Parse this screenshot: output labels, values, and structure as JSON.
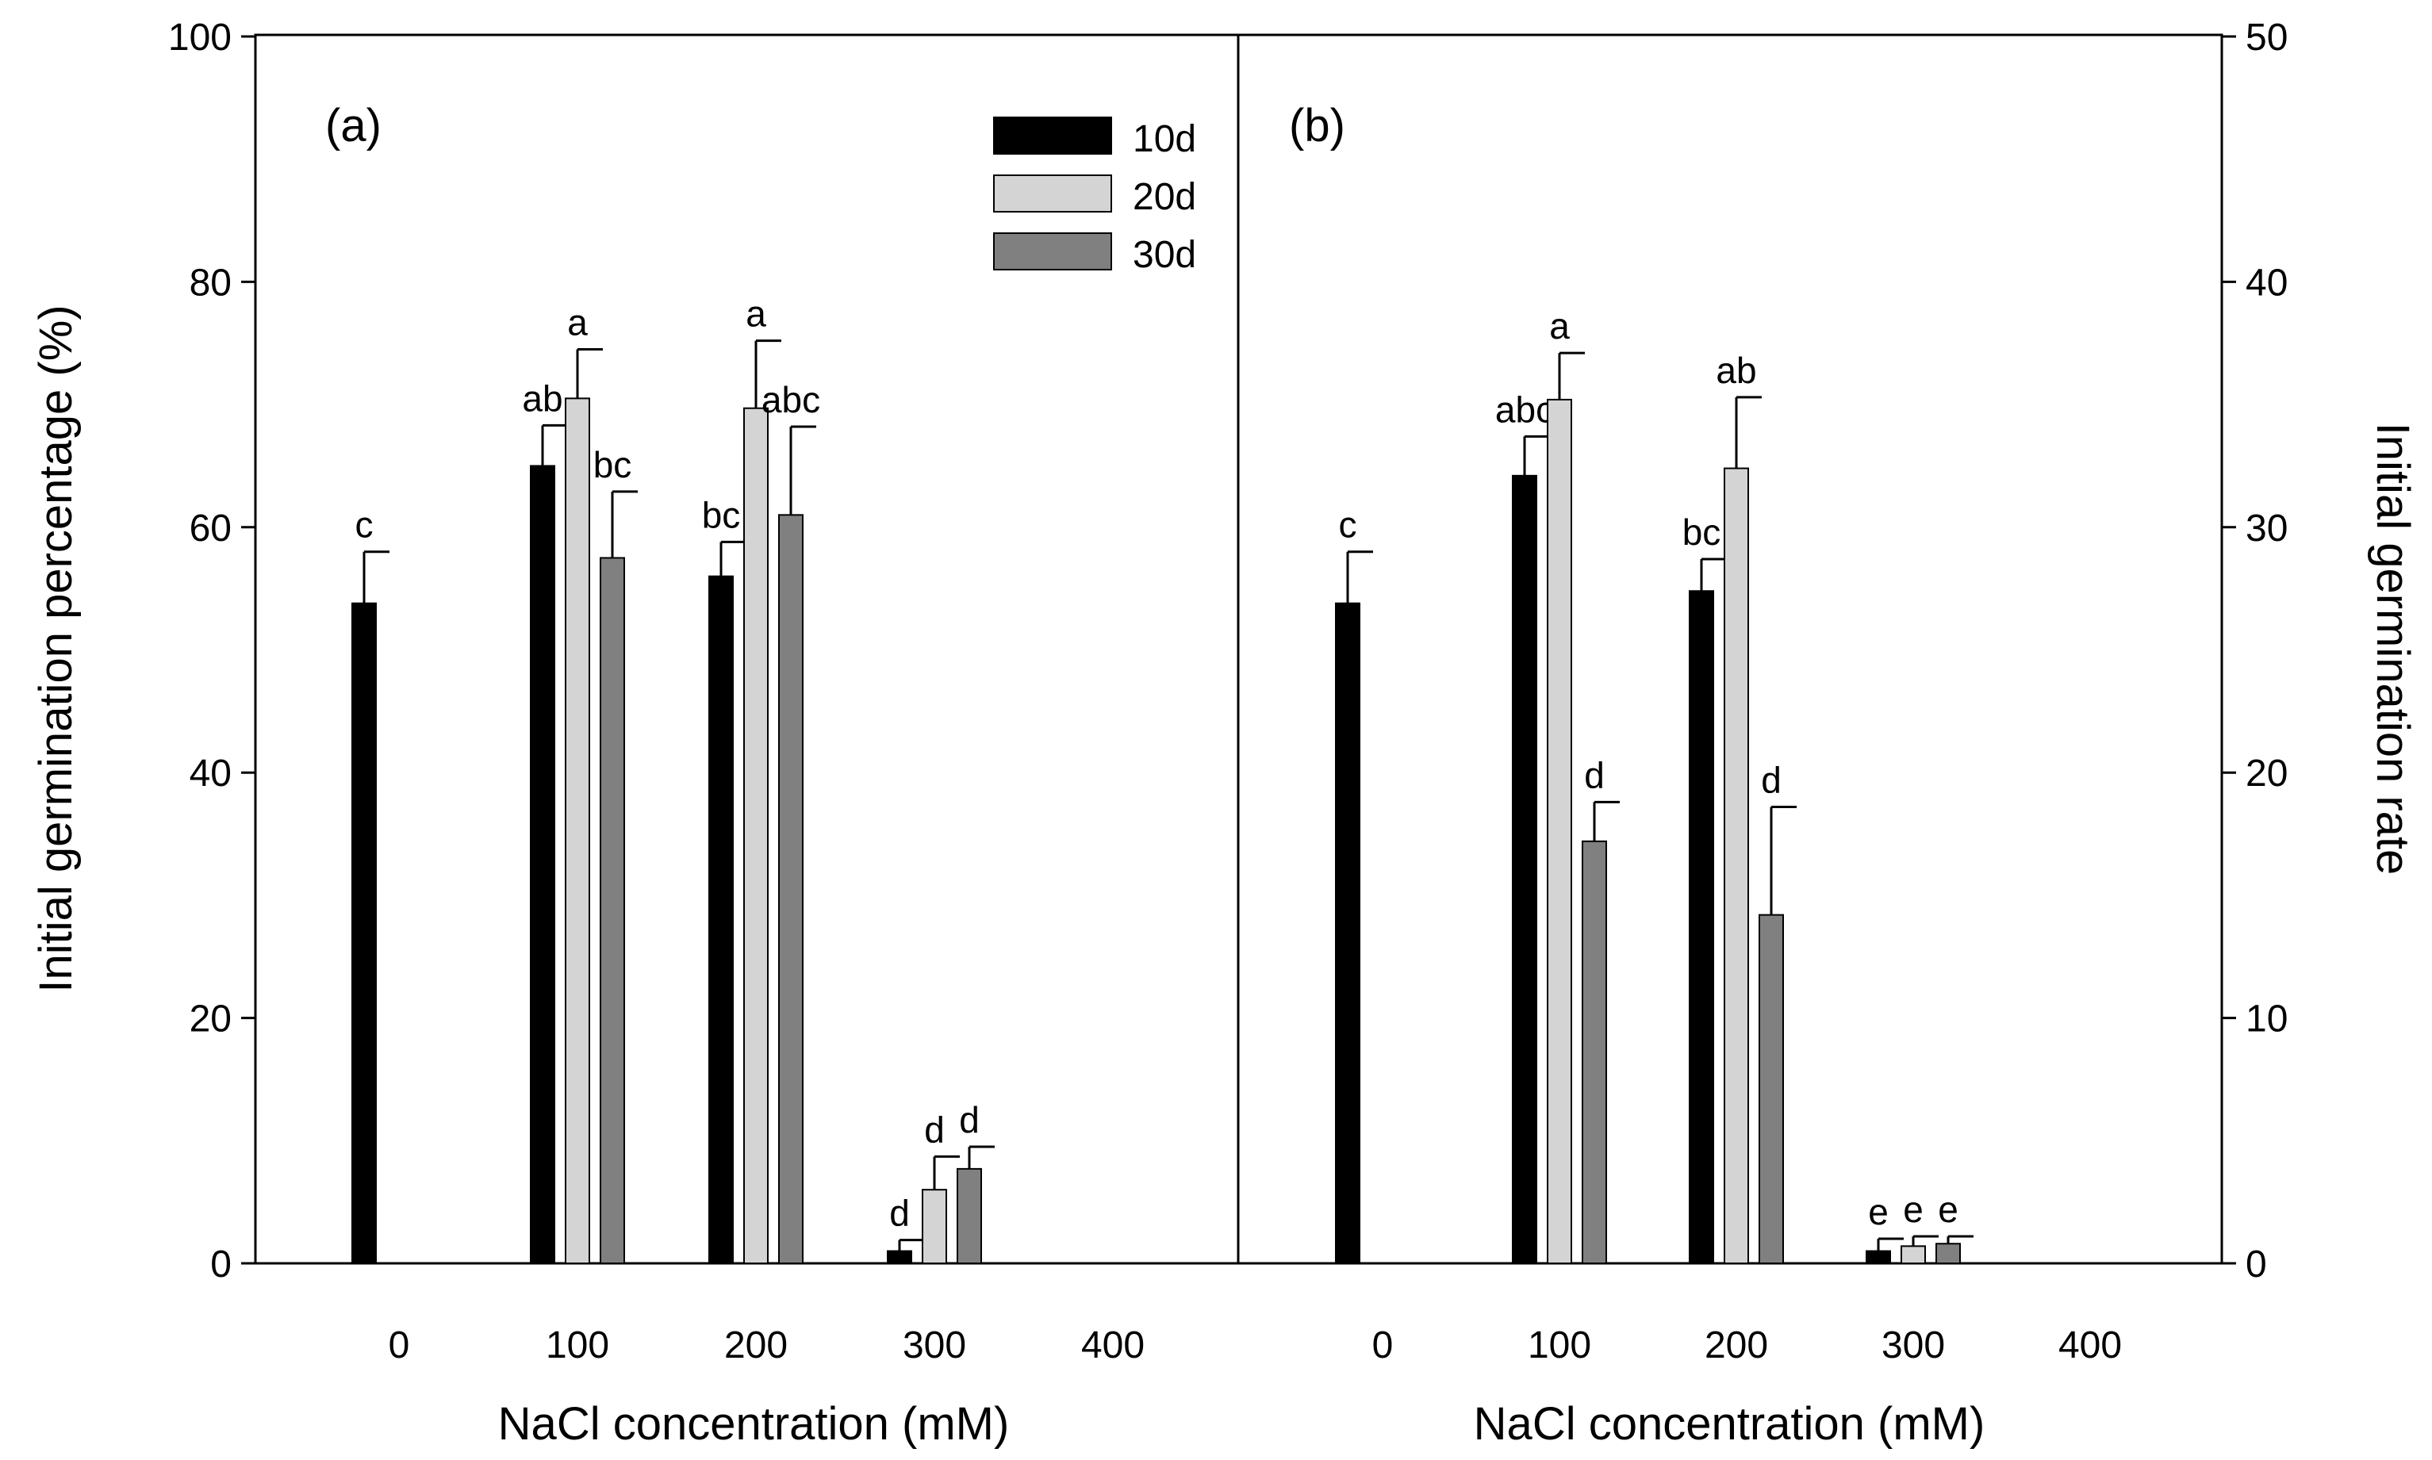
{
  "figure": {
    "left_axis_title": "Initial germination percentage (%)",
    "right_axis_title": "Initial germination rate",
    "legend": [
      {
        "label": "10d",
        "color": "#000000"
      },
      {
        "label": "20d",
        "color": "#d4d4d4"
      },
      {
        "label": "30d",
        "color": "#808080"
      }
    ]
  },
  "chart_data": [
    {
      "type": "bar",
      "panel_label": "(a)",
      "xlabel": "NaCl concentration (mM)",
      "ylabel": "Initial germination percentage (%)",
      "categories": [
        "0",
        "100",
        "200",
        "300",
        "400"
      ],
      "ylim": [
        0,
        100
      ],
      "yticks": [
        0,
        20,
        40,
        60,
        80,
        100
      ],
      "series": [
        {
          "name": "10d",
          "color": "#000000",
          "values": [
            53.8,
            65.0,
            56.0,
            1.0,
            null
          ],
          "errors": [
            4.2,
            3.3,
            2.8,
            0.9,
            null
          ],
          "labels": [
            "c",
            "ab",
            "bc",
            "d",
            null
          ]
        },
        {
          "name": "20d",
          "color": "#d4d4d4",
          "values": [
            null,
            70.5,
            69.7,
            6.0,
            null
          ],
          "errors": [
            null,
            4.0,
            5.5,
            2.7,
            null
          ],
          "labels": [
            null,
            "a",
            "a",
            "d",
            null
          ]
        },
        {
          "name": "30d",
          "color": "#808080",
          "values": [
            null,
            57.5,
            61.0,
            7.7,
            null
          ],
          "errors": [
            null,
            5.4,
            7.2,
            1.8,
            null
          ],
          "labels": [
            null,
            "bc",
            "abc",
            "d",
            null
          ]
        }
      ]
    },
    {
      "type": "bar",
      "panel_label": "(b)",
      "xlabel": "NaCl concentration (mM)",
      "ylabel": "Initial germination rate",
      "categories": [
        "0",
        "100",
        "200",
        "300",
        "400"
      ],
      "ylim": [
        0,
        50
      ],
      "yticks": [
        0,
        10,
        20,
        30,
        40,
        50
      ],
      "series": [
        {
          "name": "10d",
          "color": "#000000",
          "values": [
            26.9,
            32.1,
            27.4,
            0.5,
            null
          ],
          "errors": [
            2.1,
            1.6,
            1.3,
            0.5,
            null
          ],
          "labels": [
            "c",
            "abc",
            "bc",
            "e",
            null
          ]
        },
        {
          "name": "20d",
          "color": "#d4d4d4",
          "values": [
            null,
            35.2,
            32.4,
            0.7,
            null
          ],
          "errors": [
            null,
            1.9,
            2.9,
            0.4,
            null
          ],
          "labels": [
            null,
            "a",
            "ab",
            "e",
            null
          ]
        },
        {
          "name": "30d",
          "color": "#808080",
          "values": [
            null,
            17.2,
            14.2,
            0.8,
            null
          ],
          "errors": [
            null,
            1.6,
            4.4,
            0.3,
            null
          ],
          "labels": [
            null,
            "d",
            "d",
            "e",
            null
          ]
        }
      ]
    }
  ]
}
